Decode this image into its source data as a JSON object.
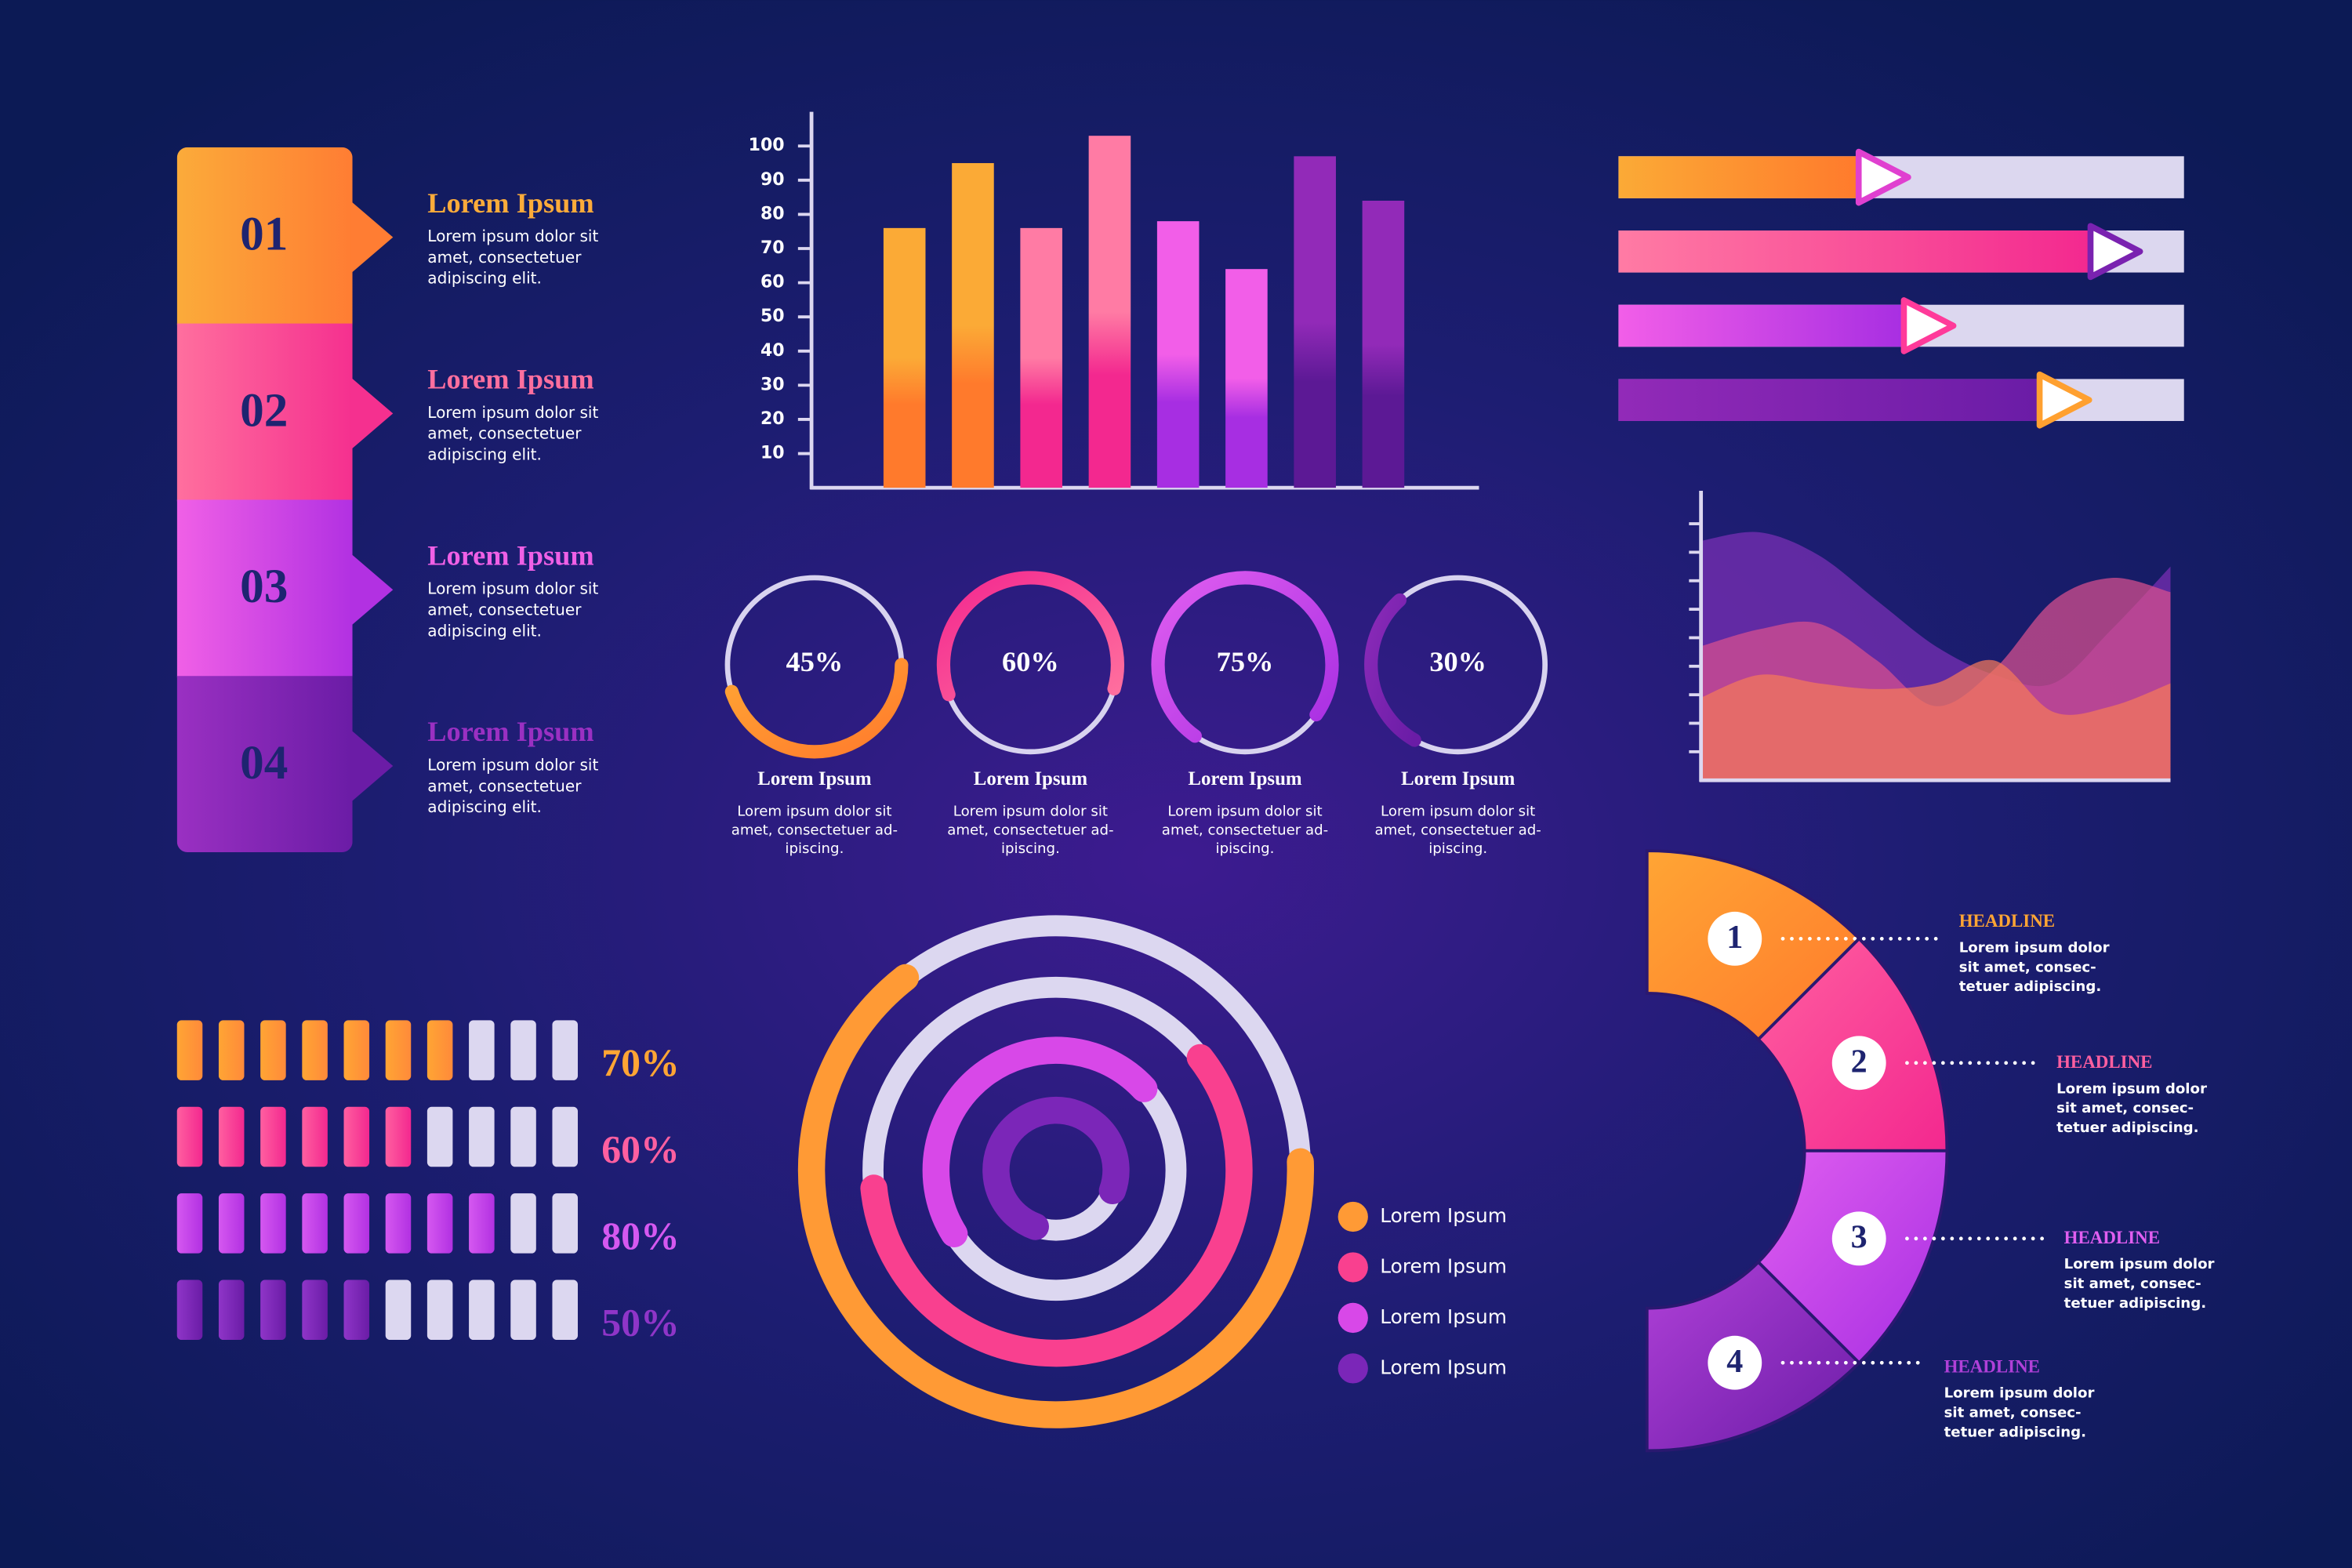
{
  "steps": [
    {
      "number": "01",
      "title": "Lorem Ipsum",
      "text": [
        "Lorem ipsum dolor sit",
        "amet, consectetuer",
        "adipiscing elit."
      ],
      "colors": [
        "#fbab3a",
        "#ff7d33"
      ]
    },
    {
      "number": "02",
      "title": "Lorem Ipsum",
      "text": [
        "Lorem ipsum dolor sit",
        "amet, consectetuer",
        "adipiscing elit."
      ],
      "colors": [
        "#ff6f9e",
        "#f5308f"
      ]
    },
    {
      "number": "03",
      "title": "Lorem Ipsum",
      "text": [
        "Lorem ipsum dolor sit",
        "amet, consectetuer",
        "adipiscing elit."
      ],
      "colors": [
        "#f060e6",
        "#b231e2"
      ]
    },
    {
      "number": "04",
      "title": "Lorem Ipsum",
      "text": [
        "Lorem ipsum dolor sit",
        "amet, consectetuer",
        "adipiscing elit."
      ],
      "colors": [
        "#9a30c2",
        "#6b1ca6"
      ]
    }
  ],
  "chart_data": [
    {
      "type": "bar",
      "categories": [
        null,
        null,
        null,
        null,
        null,
        null,
        null,
        null
      ],
      "values": [
        76,
        95,
        76,
        103,
        78,
        64,
        97,
        84
      ],
      "colors": [
        [
          "#fbaa36",
          "#ff7a2c"
        ],
        [
          "#fbaa36",
          "#ff7a2c"
        ],
        [
          "#ff7ba4",
          "#f3288f"
        ],
        [
          "#ff7ba4",
          "#f3288f"
        ],
        [
          "#f25ee8",
          "#a72ee2"
        ],
        [
          "#f25ee8",
          "#a72ee2"
        ],
        [
          "#922ab8",
          "#5c1995"
        ],
        [
          "#922ab8",
          "#5c1995"
        ]
      ],
      "ylim": [
        0,
        110
      ],
      "yticks": [
        10,
        20,
        30,
        40,
        50,
        60,
        70,
        80,
        90,
        100
      ]
    },
    {
      "type": "progress-bar",
      "values": [
        43,
        84,
        51,
        75
      ],
      "xlim": [
        0,
        100
      ],
      "colors": [
        [
          "#fbaa36",
          "#ff7a2c",
          "#e040d0"
        ],
        [
          "#ff7ba4",
          "#f3288f",
          "#7a22b0"
        ],
        [
          "#f25ee8",
          "#a72ee2",
          "#ff3a9a"
        ],
        [
          "#922ab8",
          "#6a1ca6",
          "#ffa030"
        ]
      ]
    },
    {
      "type": "area",
      "x": [
        0,
        1,
        2,
        3,
        4,
        5,
        6,
        7,
        8
      ],
      "xlim": [
        0,
        8
      ],
      "ylim": [
        0,
        10
      ],
      "yticks": [
        1,
        2,
        3,
        4,
        5,
        6,
        7,
        8,
        9
      ],
      "series": [
        {
          "color": "#7b2fb5",
          "values": [
            8.4,
            8.7,
            7.9,
            6.3,
            4.7,
            3.7,
            3.4,
            5.3,
            7.5
          ]
        },
        {
          "color": "#d9508f",
          "values": [
            4.7,
            5.3,
            5.5,
            4.2,
            2.6,
            3.9,
            6.3,
            7.1,
            6.6
          ]
        },
        {
          "color": "#f5785a",
          "values": [
            2.9,
            3.7,
            3.4,
            3.2,
            3.4,
            4.2,
            2.4,
            2.6,
            3.4
          ]
        }
      ]
    },
    {
      "type": "progress-ring",
      "values": [
        45,
        60,
        75,
        30
      ],
      "value_labels": [
        "45%",
        "60%",
        "75%",
        "30%"
      ],
      "colors": [
        [
          "#ffa534",
          "#ff7a2c"
        ],
        [
          "#f3288f",
          "#ff6f9e"
        ],
        [
          "#e05ef0",
          "#a72ee2"
        ],
        [
          "#8a2ab8",
          "#6a1ca6"
        ]
      ],
      "captions": [
        {
          "title": "Lorem Ipsum",
          "text": [
            "Lorem ipsum dolor sit",
            "amet, consectetuer ad-",
            "ipiscing."
          ]
        },
        {
          "title": "Lorem Ipsum",
          "text": [
            "Lorem ipsum dolor sit",
            "amet, consectetuer ad-",
            "ipiscing."
          ]
        },
        {
          "title": "Lorem Ipsum",
          "text": [
            "Lorem ipsum dolor sit",
            "amet, consectetuer ad-",
            "ipiscing."
          ]
        },
        {
          "title": "Lorem Ipsum",
          "text": [
            "Lorem ipsum dolor sit",
            "amet, consectetuer ad-",
            "ipiscing."
          ]
        }
      ]
    },
    {
      "type": "waffle",
      "values": [
        70,
        60,
        80,
        50
      ],
      "value_labels": [
        "70%",
        "60%",
        "80%",
        "50%"
      ],
      "xlim": [
        0,
        100
      ],
      "colors": [
        [
          "#ffa534",
          "#ff8a3a"
        ],
        [
          "#ff5fa0",
          "#f3288f"
        ],
        [
          "#d558f0",
          "#b231e2"
        ],
        [
          "#8f35c8",
          "#6a1ca6"
        ]
      ]
    },
    {
      "type": "radial-bar",
      "ylim": [
        0,
        100
      ],
      "series": [
        {
          "name": "Lorem Ipsum",
          "color": "#ff9a35",
          "values": [
            65
          ]
        },
        {
          "name": "Lorem Ipsum",
          "color": "#f9408f",
          "values": [
            59
          ]
        },
        {
          "name": "Lorem Ipsum",
          "color": "#d848e8",
          "values": [
            47
          ]
        },
        {
          "name": "Lorem Ipsum",
          "color": "#7b26b8",
          "values": [
            75
          ]
        }
      ]
    }
  ],
  "segments": [
    {
      "number": "1",
      "title": "HEADLINE",
      "text": [
        "Lorem ipsum dolor",
        "sit amet, consec-",
        "tetuer adipiscing."
      ],
      "colors": [
        "#ffa534",
        "#ff7a2c"
      ]
    },
    {
      "number": "2",
      "title": "HEADLINE",
      "text": [
        "Lorem ipsum dolor",
        "sit amet, consec-",
        "tetuer adipiscing."
      ],
      "colors": [
        "#ff5fa0",
        "#f3288f"
      ]
    },
    {
      "number": "3",
      "title": "HEADLINE",
      "text": [
        "Lorem ipsum dolor",
        "sit amet, consec-",
        "tetuer adipiscing."
      ],
      "colors": [
        "#e05ef0",
        "#a72ee2"
      ]
    },
    {
      "number": "4",
      "title": "HEADLINE",
      "text": [
        "Lorem ipsum dolor",
        "sit amet, consec-",
        "tetuer adipiscing."
      ],
      "colors": [
        "#b040d8",
        "#6a1ca6"
      ]
    }
  ]
}
